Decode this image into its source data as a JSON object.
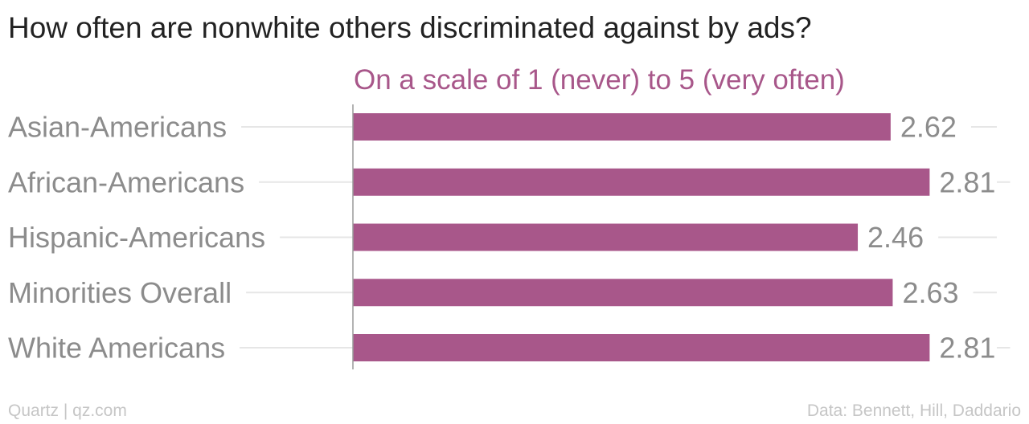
{
  "header": {
    "title": "How often are nonwhite others discriminated against by ads?",
    "subtitle": "On a scale of 1 (never) to 5 (very often)"
  },
  "footer": {
    "source_left": "Quartz | qz.com",
    "source_right": "Data: Bennett, Hill, Daddario"
  },
  "colors": {
    "bar": "#a8578a",
    "subtitle": "#a8578a",
    "label": "#8c8c8c",
    "grid": "#e6e6e6",
    "axis": "#9a9a9a"
  },
  "chart_data": {
    "type": "bar",
    "orientation": "horizontal",
    "title": "How often are nonwhite others discriminated against by ads?",
    "subtitle": "On a scale of 1 (never) to 5 (very often)",
    "categories": [
      "Asian-Americans",
      "African-Americans",
      "Hispanic-Americans",
      "Minorities Overall",
      "White Americans"
    ],
    "values": [
      2.62,
      2.81,
      2.46,
      2.63,
      2.81
    ],
    "value_labels": [
      "2.62",
      "2.81",
      "2.46",
      "2.63",
      "2.81"
    ],
    "xlim": [
      0,
      3.2
    ],
    "grid": true
  }
}
